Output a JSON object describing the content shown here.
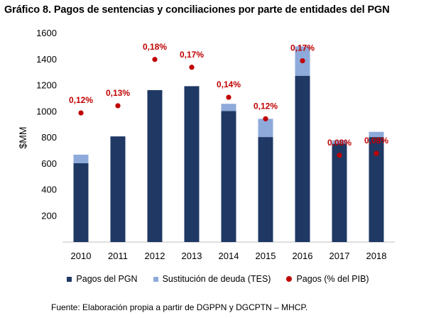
{
  "title": "Gráfico 8. Pagos de sentencias y conciliaciones por parte de entidades del PGN",
  "source": "Fuente: Elaboración propia a partir de DGPPN y DGCPTN – MHCP.",
  "colors": {
    "pagos_pgn": "#1f3864",
    "sustitucion": "#8eaadb",
    "pagos_pib": "#c00000"
  },
  "chart_data": {
    "type": "bar",
    "stacked": true,
    "categories": [
      "2010",
      "2011",
      "2012",
      "2013",
      "2014",
      "2015",
      "2016",
      "2017",
      "2018"
    ],
    "series": [
      {
        "name": "Pagos del PGN",
        "values": [
          605,
          810,
          1165,
          1195,
          1005,
          805,
          1275,
          755,
          805
        ]
      },
      {
        "name": "Sustitución de deuda (TES)",
        "values": [
          65,
          0,
          0,
          0,
          55,
          140,
          225,
          25,
          40
        ]
      },
      {
        "name": "Pagos (% del PIB)",
        "values": [
          0.12,
          0.13,
          0.18,
          0.17,
          0.14,
          0.12,
          0.17,
          0.08,
          0.08
        ],
        "labels": [
          "0,12%",
          "0,13%",
          "0,18%",
          "0,17%",
          "0,14%",
          "0,12%",
          "0,17%",
          "0,08%",
          "0,08%"
        ],
        "marker_y": [
          990,
          1045,
          1400,
          1340,
          1110,
          945,
          1390,
          665,
          680
        ]
      }
    ],
    "ylabel": "$MM",
    "ylim": [
      0,
      1600
    ],
    "yticks": [
      "200",
      "400",
      "600",
      "800",
      "1000",
      "1200",
      "1400",
      "1600"
    ],
    "ytick_values": [
      200,
      400,
      600,
      800,
      1000,
      1200,
      1400,
      1600
    ],
    "legend_position": "bottom"
  }
}
